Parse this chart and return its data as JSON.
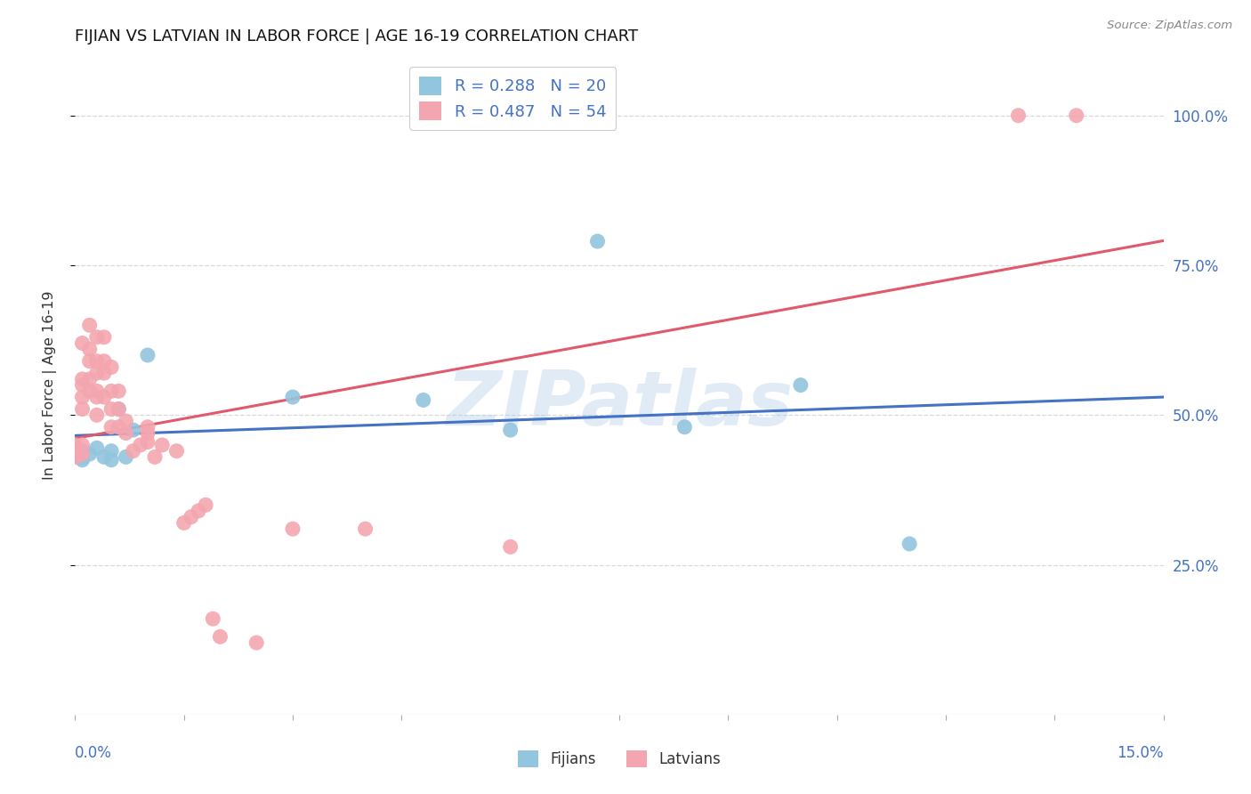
{
  "title": "FIJIAN VS LATVIAN IN LABOR FORCE | AGE 16-19 CORRELATION CHART",
  "source": "Source: ZipAtlas.com",
  "ylabel": "In Labor Force | Age 16-19",
  "watermark": "ZIPatlas",
  "legend_fijian_r": "R = 0.288",
  "legend_fijian_n": "N = 20",
  "legend_latvian_r": "R = 0.487",
  "legend_latvian_n": "N = 54",
  "fijian_color": "#92C5DE",
  "fijian_line_color": "#4472C4",
  "latvian_color": "#F4A6B0",
  "latvian_line_color": "#E05A6E",
  "fijian_x": [
    0.0,
    0.001,
    0.001,
    0.001,
    0.002,
    0.003,
    0.004,
    0.005,
    0.005,
    0.006,
    0.007,
    0.008,
    0.01,
    0.03,
    0.048,
    0.06,
    0.072,
    0.084,
    0.1,
    0.115
  ],
  "fijian_y": [
    0.435,
    0.43,
    0.44,
    0.425,
    0.435,
    0.445,
    0.43,
    0.425,
    0.44,
    0.51,
    0.43,
    0.475,
    0.6,
    0.53,
    0.525,
    0.475,
    0.79,
    0.48,
    0.55,
    0.285
  ],
  "latvian_x": [
    0.0,
    0.0,
    0.0,
    0.001,
    0.001,
    0.001,
    0.001,
    0.001,
    0.001,
    0.001,
    0.002,
    0.002,
    0.002,
    0.002,
    0.002,
    0.003,
    0.003,
    0.003,
    0.003,
    0.003,
    0.003,
    0.004,
    0.004,
    0.004,
    0.004,
    0.005,
    0.005,
    0.005,
    0.005,
    0.006,
    0.006,
    0.006,
    0.007,
    0.007,
    0.008,
    0.009,
    0.01,
    0.01,
    0.01,
    0.011,
    0.012,
    0.014,
    0.015,
    0.016,
    0.017,
    0.018,
    0.019,
    0.02,
    0.025,
    0.03,
    0.04,
    0.06,
    0.13,
    0.138
  ],
  "latvian_y": [
    0.43,
    0.44,
    0.45,
    0.435,
    0.45,
    0.51,
    0.53,
    0.55,
    0.56,
    0.62,
    0.54,
    0.56,
    0.59,
    0.61,
    0.65,
    0.5,
    0.53,
    0.54,
    0.57,
    0.59,
    0.63,
    0.53,
    0.57,
    0.59,
    0.63,
    0.48,
    0.51,
    0.54,
    0.58,
    0.48,
    0.51,
    0.54,
    0.47,
    0.49,
    0.44,
    0.45,
    0.455,
    0.47,
    0.48,
    0.43,
    0.45,
    0.44,
    0.32,
    0.33,
    0.34,
    0.35,
    0.16,
    0.13,
    0.12,
    0.31,
    0.31,
    0.28,
    1.0,
    1.0
  ],
  "xlim": [
    0.0,
    0.15
  ],
  "ylim": [
    0.0,
    1.1
  ],
  "yticks": [
    0.25,
    0.5,
    0.75,
    1.0
  ],
  "ytick_labels": [
    "25.0%",
    "50.0%",
    "75.0%",
    "100.0%"
  ],
  "grid_color": "#d9d9d9",
  "background_color": "#ffffff",
  "title_fontsize": 13,
  "axis_label_color": "#4472C4",
  "source_color": "#888888"
}
